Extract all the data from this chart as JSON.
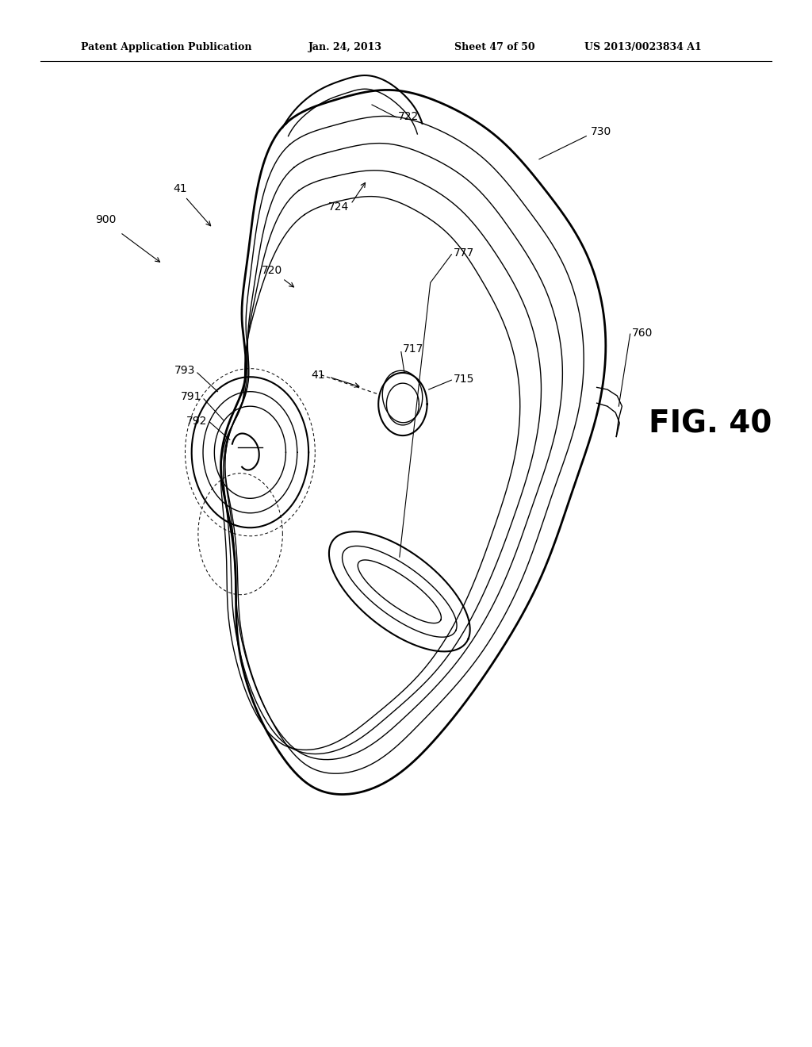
{
  "title_header": "Patent Application Publication",
  "date_header": "Jan. 24, 2013",
  "sheet_header": "Sheet 47 of 50",
  "patent_header": "US 2013/0023834 A1",
  "fig_label": "FIG. 40",
  "background_color": "#ffffff",
  "line_color": "#000000",
  "header_fontsize": 9,
  "fig_fontsize": 28,
  "label_fontsize": 10,
  "lw_thin": 1.0,
  "lw_med": 1.5,
  "lw_thick": 2.0
}
